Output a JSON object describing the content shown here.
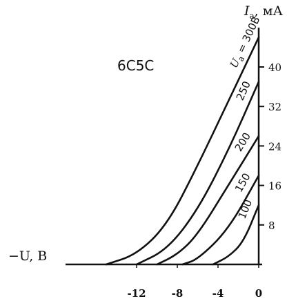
{
  "chart_data": {
    "type": "line",
    "title": "6С5С",
    "xlabel": "−U, В",
    "ylabel_symbol": "I",
    "ylabel_subscript": "a",
    "ylabel_unit": ", мА",
    "xlim": [
      -18,
      0
    ],
    "ylim": [
      0,
      48
    ],
    "xticks": [
      -12,
      -8,
      -4,
      0
    ],
    "xtick_labels": [
      "-12",
      "-8",
      "-4",
      "0"
    ],
    "yticks": [
      8,
      16,
      24,
      32,
      40
    ],
    "ytick_labels": [
      "8",
      "16",
      "24",
      "32",
      "40"
    ],
    "series": [
      {
        "name": "U",
        "subscript": "a",
        "suffix": " = 300В",
        "x": [
          -15,
          -12,
          -9,
          -6,
          -3,
          0
        ],
        "y": [
          0,
          2,
          8,
          20,
          33,
          46
        ]
      },
      {
        "name": "250",
        "x": [
          -12,
          -9,
          -6,
          -3,
          0
        ],
        "y": [
          0,
          3,
          11,
          23,
          37
        ]
      },
      {
        "name": "200",
        "x": [
          -10,
          -8,
          -6,
          -3,
          0
        ],
        "y": [
          0,
          2,
          6,
          16,
          26
        ]
      },
      {
        "name": "150",
        "x": [
          -7.5,
          -6,
          -3,
          0
        ],
        "y": [
          0,
          1,
          7,
          18
        ]
      },
      {
        "name": "100",
        "x": [
          -4.5,
          -3,
          -1.5,
          0
        ],
        "y": [
          0,
          1.5,
          4.5,
          12
        ]
      }
    ]
  }
}
